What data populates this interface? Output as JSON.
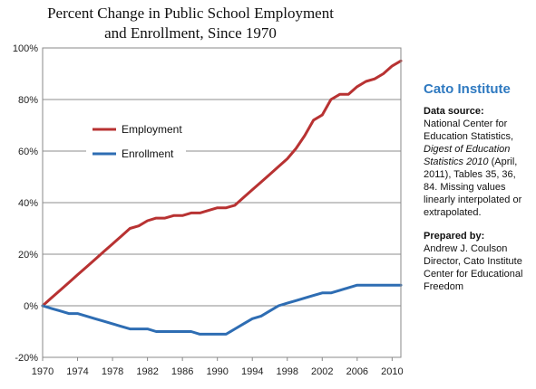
{
  "title": {
    "line1": "Percent Change in Public School Employment",
    "line2": "and Enrollment, Since 1970"
  },
  "sidebar": {
    "org": "Cato Institute",
    "source_heading": "Data source:",
    "source_line1": "National Center for",
    "source_line2": "Education Statistics,",
    "source_italic1": "Digest of Education",
    "source_italic2": "Statistics 2010",
    "source_line3": " (April,",
    "source_line4": "2011), Tables 35, 36,",
    "source_line5": "84.  Missing values",
    "source_line6": "linearly interpolated or",
    "source_line7": "extrapolated.",
    "prepared_heading": "Prepared by:",
    "prepared_line1": "Andrew J. Coulson",
    "prepared_line2": "Director, Cato Institute",
    "prepared_line3": "Center for Educational",
    "prepared_line4": "Freedom"
  },
  "chart_data": {
    "type": "line",
    "title": "Percent Change in Public School Employment and Enrollment, Since 1970",
    "xlim": [
      1970,
      2011
    ],
    "ylim": [
      -20,
      100
    ],
    "y_ticks": [
      -20,
      0,
      20,
      40,
      60,
      80,
      100
    ],
    "y_tick_labels": [
      "-20%",
      "0%",
      "20%",
      "40%",
      "60%",
      "80%",
      "100%"
    ],
    "x_ticks": [
      1970,
      1974,
      1978,
      1982,
      1986,
      1990,
      1994,
      1998,
      2002,
      2006,
      2010
    ],
    "x_tick_labels": [
      "1970",
      "1974",
      "1978",
      "1982",
      "1986",
      "1990",
      "1994",
      "1998",
      "2002",
      "2006",
      "2010"
    ],
    "grid": "horizontal",
    "legend": "upper-left",
    "x": [
      1970,
      1971,
      1972,
      1973,
      1974,
      1975,
      1976,
      1977,
      1978,
      1979,
      1980,
      1981,
      1982,
      1983,
      1984,
      1985,
      1986,
      1987,
      1988,
      1989,
      1990,
      1991,
      1992,
      1993,
      1994,
      1995,
      1996,
      1997,
      1998,
      1999,
      2000,
      2001,
      2002,
      2003,
      2004,
      2005,
      2006,
      2007,
      2008,
      2009,
      2010,
      2011
    ],
    "series": [
      {
        "name": "Employment",
        "color": "#b83232",
        "values": [
          0,
          3,
          6,
          9,
          12,
          15,
          18,
          21,
          24,
          27,
          30,
          31,
          33,
          34,
          34,
          35,
          35,
          36,
          36,
          37,
          38,
          38,
          39,
          42,
          45,
          48,
          51,
          54,
          57,
          61,
          66,
          72,
          74,
          80,
          82,
          82,
          85,
          87,
          88,
          90,
          93,
          95
        ]
      },
      {
        "name": "Enrollment",
        "color": "#2e6db3",
        "values": [
          0,
          -1,
          -2,
          -3,
          -3,
          -4,
          -5,
          -6,
          -7,
          -8,
          -9,
          -9,
          -9,
          -10,
          -10,
          -10,
          -10,
          -10,
          -11,
          -11,
          -11,
          -11,
          -9,
          -7,
          -5,
          -4,
          -2,
          0,
          1,
          2,
          3,
          4,
          5,
          5,
          6,
          7,
          8,
          8,
          8,
          8,
          8,
          8
        ]
      }
    ]
  }
}
